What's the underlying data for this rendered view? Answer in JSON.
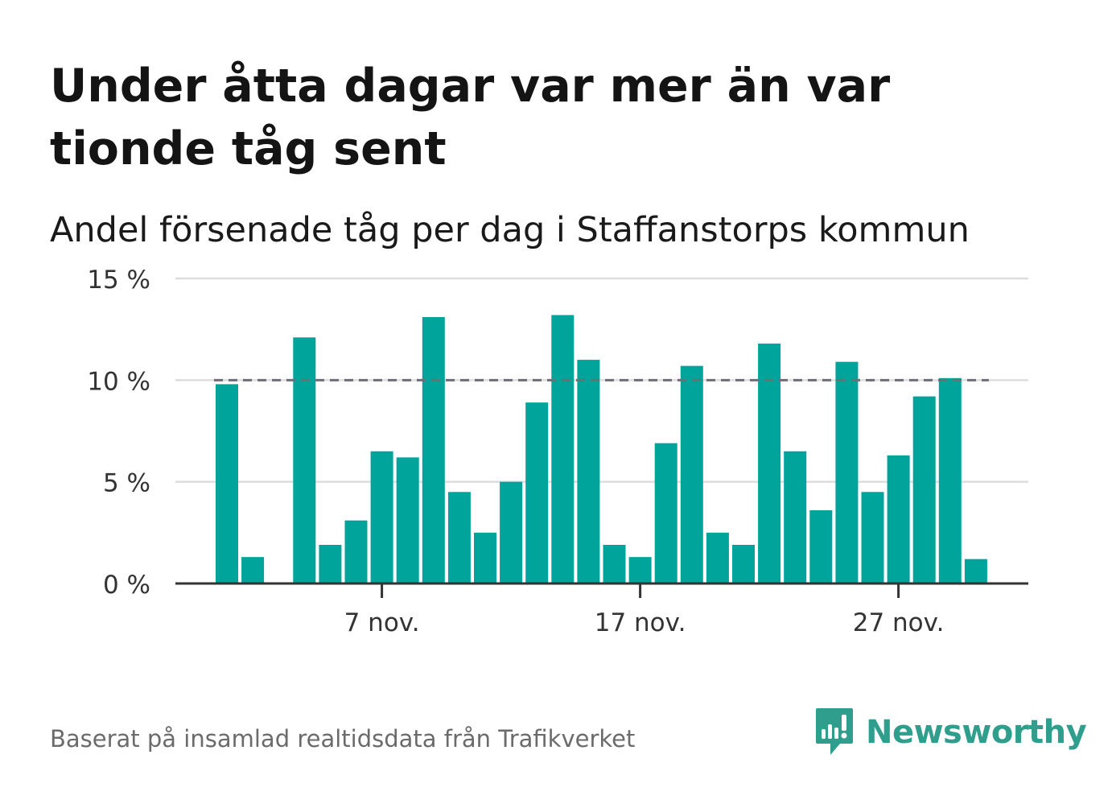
{
  "title": "Under åtta dagar var mer än var tionde tåg sent",
  "subtitle": "Andel försenade tåg per dag i Staffanstorps kommun",
  "footer": "Baserat på insamlad realtidsdata från Trafikverket",
  "brand": {
    "name": "Newsworthy",
    "icon": "newsworthy-logo-icon",
    "color": "#2f9e8c"
  },
  "colors": {
    "bar": "#00a49a",
    "reference_line": "#6e6e78",
    "grid": "#dddddd",
    "axis": "#333333"
  },
  "chart_data": {
    "type": "bar",
    "unit": "%",
    "x_start_day": 1,
    "x_end_day": 30,
    "month_label": "nov.",
    "days": [
      1,
      2,
      3,
      4,
      5,
      6,
      7,
      8,
      9,
      10,
      11,
      12,
      13,
      14,
      15,
      16,
      17,
      18,
      19,
      20,
      21,
      22,
      23,
      24,
      25,
      26,
      27,
      28,
      29,
      30
    ],
    "values": [
      9.8,
      1.3,
      null,
      12.1,
      1.9,
      3.1,
      6.5,
      6.2,
      13.1,
      4.5,
      2.5,
      5.0,
      8.9,
      13.2,
      11.0,
      1.9,
      1.3,
      6.9,
      10.7,
      2.5,
      1.9,
      11.8,
      6.5,
      3.6,
      10.9,
      4.5,
      6.3,
      9.2,
      10.1,
      1.2
    ],
    "reference_line": 10,
    "ylim": [
      0,
      15
    ],
    "yticks": [
      {
        "value": 0,
        "label": "0 %"
      },
      {
        "value": 5,
        "label": "5 %"
      },
      {
        "value": 10,
        "label": "10 %"
      },
      {
        "value": 15,
        "label": "15 %"
      }
    ],
    "xticks": [
      {
        "day": 7,
        "label": "7 nov."
      },
      {
        "day": 17,
        "label": "17 nov."
      },
      {
        "day": 27,
        "label": "27 nov."
      }
    ],
    "grid": true,
    "legend": "none"
  }
}
